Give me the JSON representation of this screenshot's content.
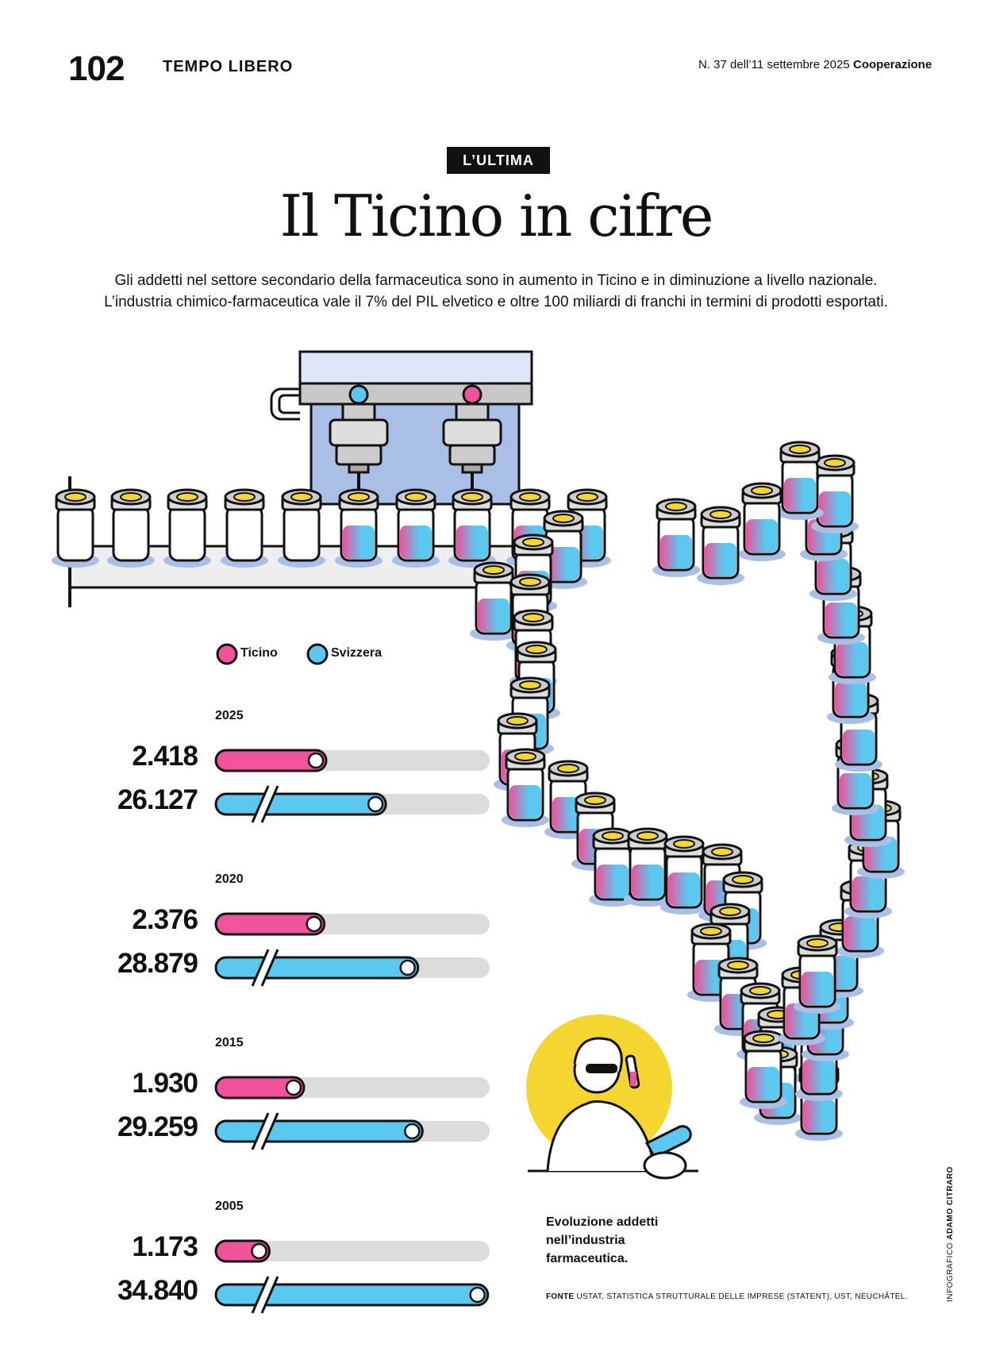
{
  "header": {
    "page_number": "102",
    "section": "TEMPO LIBERO",
    "issue": "N. 37 dell’11 settembre 2025",
    "publication": "Cooperazione"
  },
  "kicker": "L’ULTIMA",
  "title": "Il Ticino in cifre",
  "intro": {
    "line1": "Gli addetti nel settore secondario della farmaceutica sono in aumento in Ticino e in diminuzione a livello nazionale.",
    "line2": "L’industria chimico-farmaceutica vale il 7% del PIL elvetico e oltre 100 miliardi di franchi in termini di prodotti esportati."
  },
  "colors": {
    "ticino": "#F0529C",
    "svizzera": "#5BC8F0",
    "track": "#DCDCDC",
    "machine": "#A9BFE6",
    "cap": "#F5D530"
  },
  "chart_data": {
    "type": "bar",
    "legend": [
      "Ticino",
      "Svizzera"
    ],
    "groups": [
      {
        "year": "2025",
        "ticino": 2418,
        "svizzera": 26127,
        "ticino_label": "2.418",
        "svizzera_label": "26.127"
      },
      {
        "year": "2020",
        "ticino": 2376,
        "svizzera": 28879,
        "ticino_label": "2.376",
        "svizzera_label": "28.879"
      },
      {
        "year": "2015",
        "ticino": 1930,
        "svizzera": 29259,
        "ticino_label": "1.930",
        "svizzera_label": "29.259"
      },
      {
        "year": "2005",
        "ticino": 1173,
        "svizzera": 34840,
        "ticino_label": "1.173",
        "svizzera_label": "34.840"
      }
    ],
    "axis_break_on": "svizzera"
  },
  "caption": {
    "line1": "Evoluzione addetti",
    "line2": "nell’industria",
    "line3": "farmaceutica."
  },
  "source": {
    "label": "FONTE",
    "text": "USTAT, STATISTICA STRUTTURALE DELLE IMPRESE (STATENT), UST, NEUCHÂTEL."
  },
  "credit": {
    "label": "INFOGRAFICO",
    "name": "ADAMO CITRARO"
  }
}
